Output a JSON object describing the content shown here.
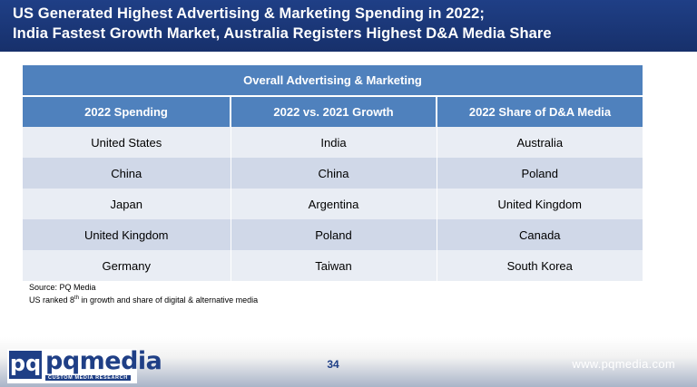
{
  "title": {
    "line1": "US Generated Highest Advertising & Marketing Spending in 2022;",
    "line2": "India Fastest Growth Market, Australia Registers Highest D&A Media Share"
  },
  "table": {
    "group_header": "Overall Advertising & Marketing",
    "columns": [
      "2022 Spending",
      "2022 vs. 2021 Growth",
      "2022 Share of D&A Media"
    ],
    "rows": [
      [
        "United States",
        "India",
        "Australia"
      ],
      [
        "China",
        "China",
        "Poland"
      ],
      [
        "Japan",
        "Argentina",
        "United Kingdom"
      ],
      [
        "United Kingdom",
        "Poland",
        "Canada"
      ],
      [
        "Germany",
        "Taiwan",
        "South Korea"
      ]
    ]
  },
  "notes": {
    "source": "Source: PQ Media",
    "footnote_pre": "US ranked 8",
    "footnote_sup": "th",
    "footnote_post": " in growth and share of digital & alternative media"
  },
  "footer": {
    "logo_mark": "pq",
    "logo_name": "pqmedia",
    "logo_tagline": "CUSTOM MEDIA RESEARCH",
    "page_number": "34",
    "website": "www.pqmedia.com"
  },
  "colors": {
    "title_bar": "#1f3f86",
    "table_header": "#4f81bd",
    "row_light": "#e9edf4",
    "row_dark": "#d0d8e8"
  }
}
